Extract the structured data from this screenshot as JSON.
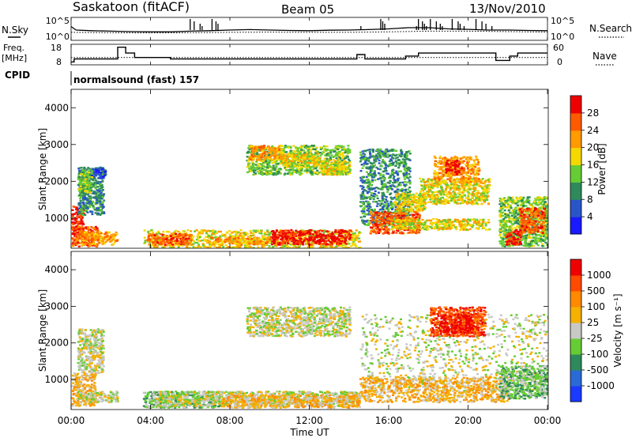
{
  "header": {
    "station": "Saskatoon (fitACF)",
    "beam": "Beam 05",
    "date": "13/Nov/2010"
  },
  "left_labels": {
    "nsky": "N.Sky",
    "freq_l1": "Freq.",
    "freq_l2": "[MHz]",
    "cpid": "CPID"
  },
  "right_labels": {
    "nsearch": "N.Search",
    "nave": "Nave"
  },
  "cpid_text": "normalsound (fast) 157",
  "colors": {
    "scatter_gray": "#c8c8c4"
  },
  "chart_data": [
    {
      "type": "line",
      "name": "noise",
      "y_ticks_left": [
        "10^5",
        "10^0"
      ],
      "y_ticks_right": [
        "10^5",
        "10^0"
      ],
      "series": [
        {
          "name": "N.Sky",
          "style": "solid",
          "x": [
            0,
            0.25,
            1,
            2,
            3,
            4,
            5,
            6,
            7,
            8,
            9,
            10,
            11,
            12,
            13,
            14,
            15,
            16,
            17,
            18,
            19,
            20,
            21,
            22,
            23,
            24
          ],
          "y": [
            0.6,
            0.45,
            0.42,
            0.4,
            0.38,
            0.37,
            0.37,
            0.4,
            0.42,
            0.45,
            0.47,
            0.45,
            0.43,
            0.42,
            0.44,
            0.45,
            0.47,
            0.5,
            0.55,
            0.55,
            0.5,
            0.48,
            0.45,
            0.45,
            0.43,
            0.42
          ]
        },
        {
          "name": "N.Search",
          "style": "dotted",
          "x": [
            0,
            2,
            4,
            6,
            8,
            10,
            12,
            14,
            16,
            18,
            20,
            22,
            24
          ],
          "y": [
            0.35,
            0.33,
            0.32,
            0.33,
            0.35,
            0.36,
            0.35,
            0.35,
            0.37,
            0.4,
            0.4,
            0.38,
            0.36
          ]
        }
      ],
      "spikes_x": [
        6.0,
        6.2,
        6.5,
        6.6,
        7.1,
        7.3,
        7.4,
        14.6,
        15.6,
        15.7,
        15.8,
        17.4,
        17.5,
        17.7,
        17.8,
        17.9,
        18.1,
        18.4,
        18.6,
        18.7,
        19.2,
        19.5,
        19.6,
        19.8,
        20.4,
        20.7,
        20.9,
        21.2
      ]
    },
    {
      "type": "line",
      "name": "frequency-nave",
      "y_ticks_left": [
        "18",
        "8"
      ],
      "y_ticks_right": [
        "60",
        "0"
      ],
      "series": [
        {
          "name": "Freq.",
          "style": "solid",
          "x": [
            0,
            0.15,
            0.15,
            2.35,
            2.35,
            2.75,
            2.75,
            3.2,
            3.2,
            5.0,
            5.0,
            14.4,
            14.4,
            14.8,
            14.8,
            16.85,
            16.85,
            17.5,
            17.5,
            21.4,
            21.4,
            22.1,
            22.1,
            22.5,
            22.5,
            24
          ],
          "y": [
            8,
            8,
            10,
            10,
            18,
            18,
            14,
            14,
            11,
            11,
            10,
            10,
            13,
            13,
            10,
            10,
            12,
            12,
            14,
            14,
            9,
            9,
            12,
            12,
            14,
            14
          ]
        },
        {
          "name": "Nave",
          "style": "dotted",
          "x": [
            0,
            24
          ],
          "y": [
            25,
            25
          ]
        }
      ]
    },
    {
      "type": "heatmap",
      "name": "power",
      "ylabel": "Slant Range [km]",
      "y_ticks": [
        "1000",
        "2000",
        "3000",
        "4000"
      ],
      "ylim": [
        180,
        4500
      ],
      "xlim": [
        0,
        24
      ],
      "colorbar": {
        "label": "Power [dB]",
        "ticks": [
          "4",
          "8",
          "12",
          "16",
          "20",
          "24",
          "28"
        ],
        "colors": [
          "#1a1aff",
          "#2a55c9",
          "#2e8a5a",
          "#66cc33",
          "#f5d800",
          "#ff9a00",
          "#ff5a00",
          "#ee0000"
        ]
      },
      "regions": [
        {
          "x": [
            0,
            0.6
          ],
          "y": [
            500,
            1350
          ],
          "level": 7
        },
        {
          "x": [
            0,
            1.3
          ],
          "y": [
            250,
            800
          ],
          "level": 6
        },
        {
          "x": [
            0.4,
            2.3
          ],
          "y": [
            300,
            650
          ],
          "level": 5
        },
        {
          "x": [
            0.3,
            1.6
          ],
          "y": [
            1100,
            2400
          ],
          "level": 2
        },
        {
          "x": [
            1.0,
            1.7
          ],
          "y": [
            2100,
            2400
          ],
          "level": 1
        },
        {
          "x": [
            0.3,
            1.0
          ],
          "y": [
            1700,
            2300
          ],
          "level": 3
        },
        {
          "x": [
            3.6,
            14.5
          ],
          "y": [
            200,
            700
          ],
          "level": 4
        },
        {
          "x": [
            3.8,
            6.0
          ],
          "y": [
            300,
            600
          ],
          "level": 6
        },
        {
          "x": [
            10.0,
            14.0
          ],
          "y": [
            300,
            700
          ],
          "level": 7
        },
        {
          "x": [
            7.0,
            10.0
          ],
          "y": [
            300,
            500
          ],
          "level": 5
        },
        {
          "x": [
            8.8,
            14.0
          ],
          "y": [
            2200,
            3000
          ],
          "level": 3
        },
        {
          "x": [
            8.9,
            10.5
          ],
          "y": [
            2600,
            3000
          ],
          "level": 5
        },
        {
          "x": [
            10.5,
            12.5
          ],
          "y": [
            2400,
            2800
          ],
          "level": 4
        },
        {
          "x": [
            12.5,
            14.0
          ],
          "y": [
            2200,
            2600
          ],
          "level": 4
        },
        {
          "x": [
            14.5,
            17.0
          ],
          "y": [
            800,
            2900
          ],
          "level": 2
        },
        {
          "x": [
            15.0,
            17.5
          ],
          "y": [
            600,
            1200
          ],
          "level": 6
        },
        {
          "x": [
            16.2,
            17.8
          ],
          "y": [
            1200,
            1700
          ],
          "level": 4
        },
        {
          "x": [
            17.5,
            21.0
          ],
          "y": [
            1400,
            2100
          ],
          "level": 4
        },
        {
          "x": [
            18.2,
            20.5
          ],
          "y": [
            2000,
            2700
          ],
          "level": 5
        },
        {
          "x": [
            18.8,
            19.6
          ],
          "y": [
            2200,
            2600
          ],
          "level": 7
        },
        {
          "x": [
            16.0,
            21.0
          ],
          "y": [
            700,
            1000
          ],
          "level": 4
        },
        {
          "x": [
            21.5,
            24.0
          ],
          "y": [
            250,
            1600
          ],
          "level": 3
        },
        {
          "x": [
            22.5,
            23.8
          ],
          "y": [
            600,
            1300
          ],
          "level": 6
        },
        {
          "x": [
            21.8,
            22.6
          ],
          "y": [
            300,
            700
          ],
          "level": 7
        }
      ]
    },
    {
      "type": "heatmap",
      "name": "velocity",
      "ylabel": "Slant Range [km]",
      "y_ticks": [
        "1000",
        "2000",
        "3000",
        "4000"
      ],
      "ylim": [
        180,
        4500
      ],
      "xlim": [
        0,
        24
      ],
      "x_ticks": [
        "00:00",
        "04:00",
        "08:00",
        "12:00",
        "16:00",
        "20:00",
        "00:00"
      ],
      "xlabel": "Time UT",
      "colorbar": {
        "label": "Velocity [m s⁻¹]",
        "ticks": [
          "1000",
          "500",
          "100",
          "25",
          "-25",
          "-100",
          "-500",
          "-1000"
        ],
        "colors": [
          "#1a3aff",
          "#2a6ad6",
          "#2e8a5a",
          "#66cc33",
          "#c8c8c4",
          "#f5b000",
          "#ff8a00",
          "#ff4a00",
          "#ee0000"
        ]
      },
      "regions": [
        {
          "x": [
            0,
            1.2
          ],
          "y": [
            300,
            1200
          ],
          "level": 5
        },
        {
          "x": [
            0.3,
            2.3
          ],
          "y": [
            400,
            700
          ],
          "level": 4
        },
        {
          "x": [
            0.3,
            1.6
          ],
          "y": [
            1200,
            2400
          ],
          "level": 4
        },
        {
          "x": [
            3.6,
            7.5
          ],
          "y": [
            250,
            700
          ],
          "level": 3
        },
        {
          "x": [
            4.0,
            14.5
          ],
          "y": [
            300,
            700
          ],
          "level": 4
        },
        {
          "x": [
            7.5,
            14.5
          ],
          "y": [
            250,
            600
          ],
          "level": 5
        },
        {
          "x": [
            8.8,
            14.0
          ],
          "y": [
            2200,
            3000
          ],
          "level": 4
        },
        {
          "x": [
            14.5,
            24.0
          ],
          "y": [
            700,
            2800
          ],
          "level": 4
        },
        {
          "x": [
            14.5,
            22.0
          ],
          "y": [
            400,
            1100
          ],
          "level": 5
        },
        {
          "x": [
            18.0,
            20.8
          ],
          "y": [
            2200,
            3000
          ],
          "level": 7
        },
        {
          "x": [
            18.5,
            20.2
          ],
          "y": [
            2300,
            2800
          ],
          "level": 8
        },
        {
          "x": [
            21.5,
            24.0
          ],
          "y": [
            500,
            1400
          ],
          "level": 3
        }
      ]
    }
  ]
}
